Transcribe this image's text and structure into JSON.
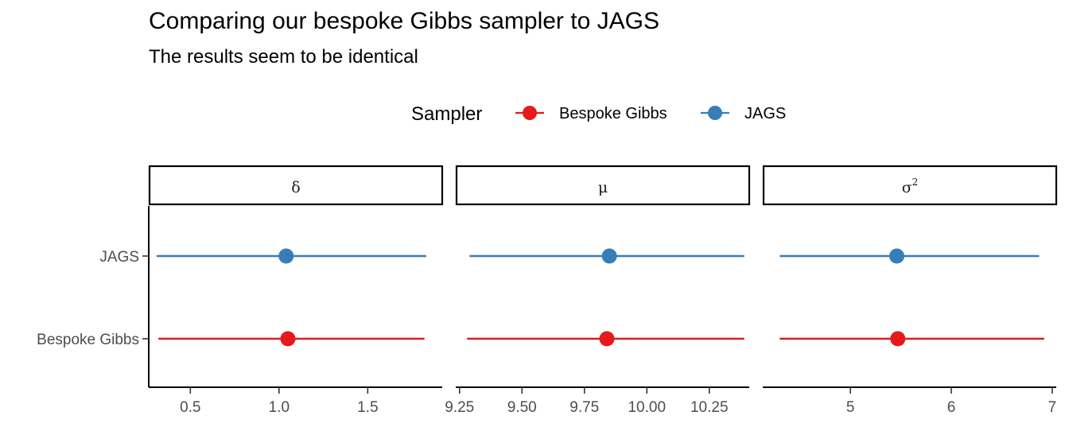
{
  "title": "Comparing our bespoke Gibbs sampler to JAGS",
  "subtitle": "The results seem to be identical",
  "legend": {
    "title": "Sampler",
    "placement": "top",
    "items": [
      {
        "label": "Bespoke Gibbs",
        "color": "#E41A1C"
      },
      {
        "label": "JAGS",
        "color": "#377EB8"
      }
    ]
  },
  "chart_data": {
    "type": "pointrange",
    "categories": [
      "JAGS",
      "Bespoke Gibbs"
    ],
    "panels": [
      {
        "strip": "δ",
        "strip_sup": "",
        "xlim": [
          0.27,
          1.92
        ],
        "ticks": [
          0.5,
          1.0,
          1.5
        ],
        "tick_labels": [
          "0.5",
          "1.0",
          "1.5"
        ],
        "series": [
          {
            "name": "JAGS",
            "estimate": 1.04,
            "lower": 0.31,
            "upper": 1.83
          },
          {
            "name": "Bespoke Gibbs",
            "estimate": 1.05,
            "lower": 0.32,
            "upper": 1.82
          }
        ]
      },
      {
        "strip": "μ",
        "strip_sup": "",
        "xlim": [
          9.238,
          10.41
        ],
        "ticks": [
          9.25,
          9.5,
          9.75,
          10.0,
          10.25
        ],
        "tick_labels": [
          "9.25",
          "9.50",
          "9.75",
          "10.00",
          "10.25"
        ],
        "series": [
          {
            "name": "JAGS",
            "estimate": 9.85,
            "lower": 9.29,
            "upper": 10.39
          },
          {
            "name": "Bespoke Gibbs",
            "estimate": 9.84,
            "lower": 9.28,
            "upper": 10.39
          }
        ]
      },
      {
        "strip": "σ",
        "strip_sup": "2",
        "xlim": [
          4.14,
          7.04
        ],
        "ticks": [
          5,
          6,
          7
        ],
        "tick_labels": [
          "5",
          "6",
          "7"
        ],
        "series": [
          {
            "name": "JAGS",
            "estimate": 5.46,
            "lower": 4.3,
            "upper": 6.87
          },
          {
            "name": "Bespoke Gibbs",
            "estimate": 5.47,
            "lower": 4.3,
            "upper": 6.92
          }
        ]
      }
    ]
  }
}
